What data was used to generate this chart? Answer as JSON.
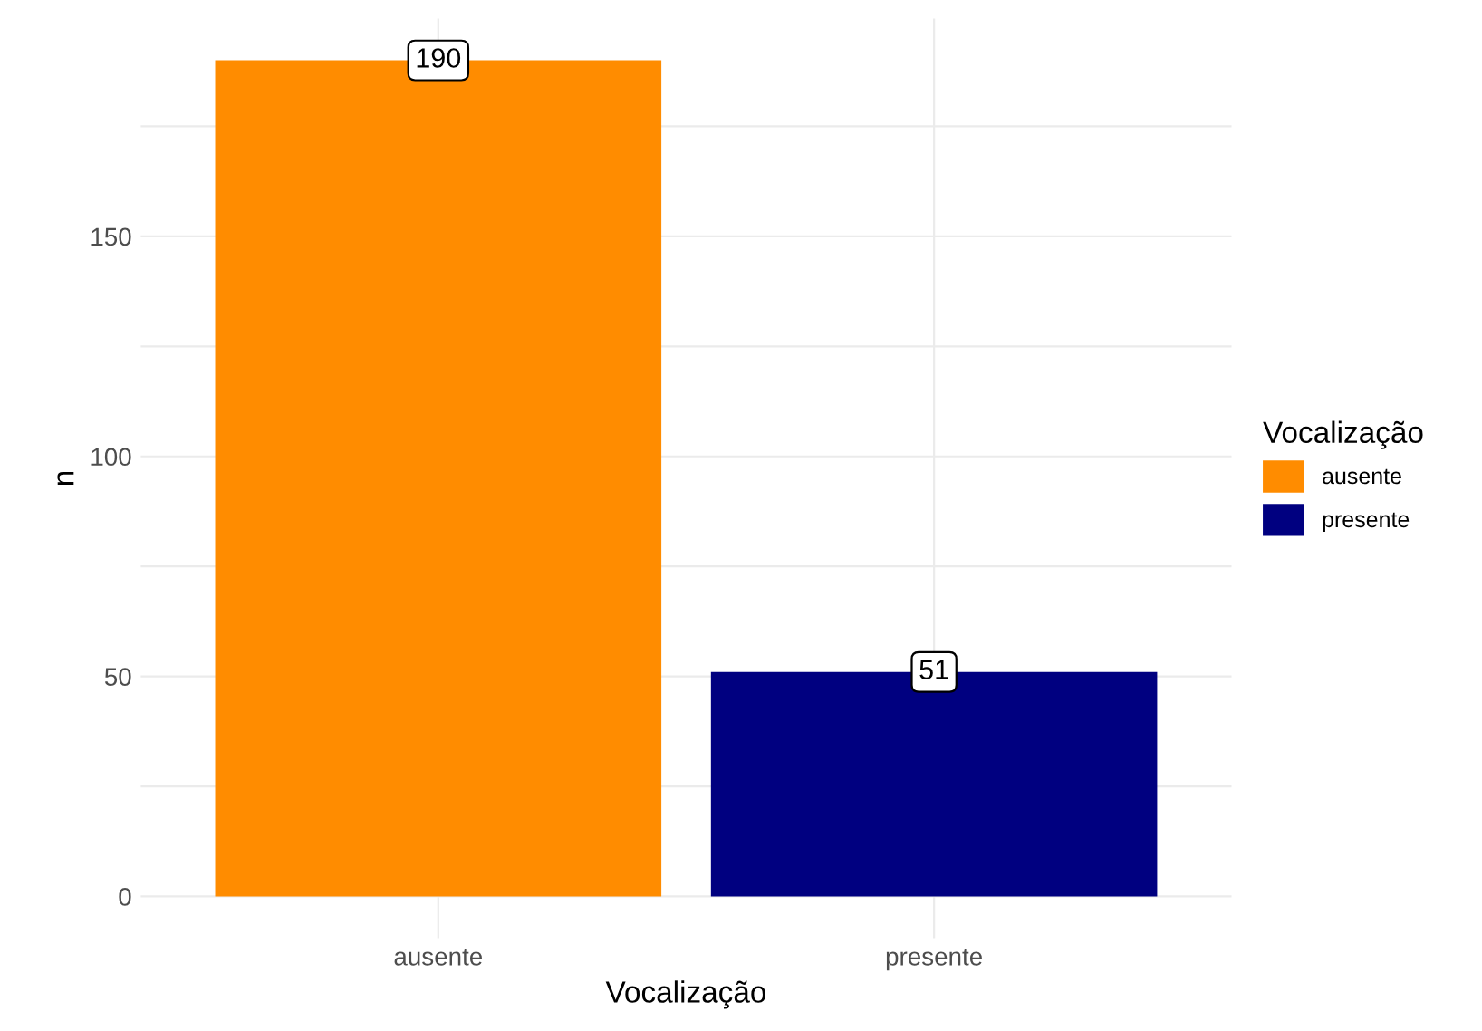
{
  "chart_data": {
    "type": "bar",
    "xlabel": "Vocalização",
    "ylabel": "n",
    "legend_title": "Vocalização",
    "categories": [
      "ausente",
      "presente"
    ],
    "series": [
      {
        "name": "ausente",
        "color": "#ff8c00",
        "values": [
          190,
          null
        ]
      },
      {
        "name": "presente",
        "color": "#000080",
        "values": [
          null,
          51
        ]
      }
    ],
    "ylim": [
      -9.5,
      199.5
    ],
    "yticks": [
      0,
      {
        "value": 25,
        "label": null
      },
      50,
      {
        "value": 75,
        "label": null
      },
      100,
      {
        "value": 125,
        "label": null
      },
      150,
      {
        "value": 175,
        "label": null
      }
    ],
    "grid": true,
    "legend": "right",
    "data_labels": true
  }
}
